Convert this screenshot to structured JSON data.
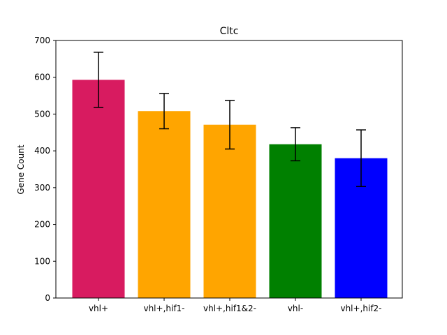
{
  "chart_data": {
    "type": "bar",
    "title": "Cltc",
    "xlabel": "",
    "ylabel": "Gene Count",
    "categories": [
      "vhl+",
      "vhl+,hif1-",
      "vhl+,hif1&2-",
      "vhl-",
      "vhl+,hif2-"
    ],
    "values": [
      593,
      508,
      471,
      418,
      380
    ],
    "errors": [
      75,
      48,
      66,
      45,
      77
    ],
    "colors": [
      "#d81b60",
      "#ffa500",
      "#ffa500",
      "#008000",
      "#0000ff"
    ],
    "ylim": [
      0,
      700
    ],
    "yticks": [
      0,
      100,
      200,
      300,
      400,
      500,
      600,
      700
    ],
    "grid": false
  }
}
